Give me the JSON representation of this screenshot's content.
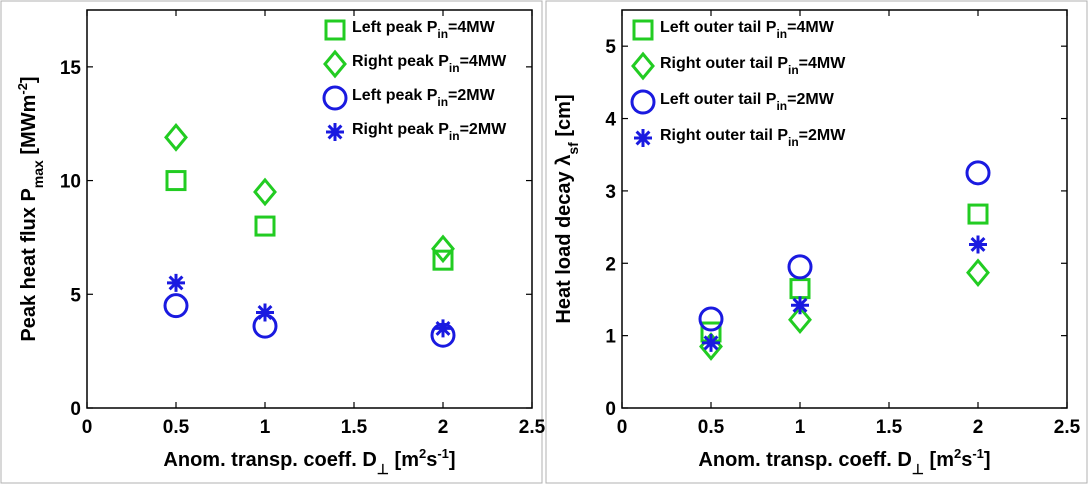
{
  "colors": {
    "green": "#22cc22",
    "blue": "#1a1ae0",
    "axis": "#000000"
  },
  "chart_data": [
    {
      "type": "scatter",
      "title": "",
      "xlabel": "Anom. transp. coeff. D",
      "xlabel_sub": "⊥",
      "xlabel_unit": "[m2s-1]",
      "ylabel": "Peak heat flux P",
      "ylabel_sub": "max",
      "ylabel_unit": "[MWm-2]",
      "xlim": [
        0,
        2.5
      ],
      "ylim": [
        0,
        17.5
      ],
      "xticks": [
        "0",
        "0.5",
        "1",
        "1.5",
        "2",
        "2.5"
      ],
      "yticks": [
        "0",
        "5",
        "10",
        "15"
      ],
      "grid": false,
      "legend_position": "top-right",
      "series": [
        {
          "name": "Left peak P",
          "name_sub": "in",
          "name_suffix": "=4MW",
          "marker": "square",
          "color": "#22cc22",
          "x": [
            0.5,
            1,
            2
          ],
          "y": [
            10.0,
            8.0,
            6.5
          ]
        },
        {
          "name": "Right peak P",
          "name_sub": "in",
          "name_suffix": "=4MW",
          "marker": "diamond",
          "color": "#22cc22",
          "x": [
            0.5,
            1,
            2
          ],
          "y": [
            11.9,
            9.5,
            7.0
          ]
        },
        {
          "name": "Left peak P",
          "name_sub": "in",
          "name_suffix": "=2MW",
          "marker": "circle",
          "color": "#1a1ae0",
          "x": [
            0.5,
            1,
            2
          ],
          "y": [
            4.5,
            3.6,
            3.2
          ]
        },
        {
          "name": "Right peak P",
          "name_sub": "in",
          "name_suffix": "=2MW",
          "marker": "star",
          "color": "#1a1ae0",
          "x": [
            0.5,
            1,
            2
          ],
          "y": [
            5.5,
            4.2,
            3.5
          ]
        }
      ]
    },
    {
      "type": "scatter",
      "title": "",
      "xlabel": "Anom. transp. coeff. D",
      "xlabel_sub": "⊥",
      "xlabel_unit": "[m2s-1]",
      "ylabel": "Heat load decay λ",
      "ylabel_sub": "sf",
      "ylabel_unit": "[cm]",
      "xlim": [
        0,
        2.5
      ],
      "ylim": [
        0,
        5.5
      ],
      "xticks": [
        "0",
        "0.5",
        "1",
        "1.5",
        "2",
        "2.5"
      ],
      "yticks": [
        "0",
        "1",
        "2",
        "3",
        "4",
        "5"
      ],
      "grid": false,
      "legend_position": "top-left",
      "series": [
        {
          "name": "Left outer tail P",
          "name_sub": "in",
          "name_suffix": "=4MW",
          "marker": "square",
          "color": "#22cc22",
          "x": [
            0.5,
            1,
            2
          ],
          "y": [
            1.05,
            1.65,
            2.68
          ]
        },
        {
          "name": "Right outer tail P",
          "name_sub": "in",
          "name_suffix": "=4MW",
          "marker": "diamond",
          "color": "#22cc22",
          "x": [
            0.5,
            1,
            2
          ],
          "y": [
            0.85,
            1.22,
            1.87
          ]
        },
        {
          "name": "Left outer tail P",
          "name_sub": "in",
          "name_suffix": "=2MW",
          "marker": "circle",
          "color": "#1a1ae0",
          "x": [
            0.5,
            1,
            2
          ],
          "y": [
            1.23,
            1.95,
            3.25
          ]
        },
        {
          "name": "Right outer tail P",
          "name_sub": "in",
          "name_suffix": "=2MW",
          "marker": "star",
          "color": "#1a1ae0",
          "x": [
            0.5,
            1,
            2
          ],
          "y": [
            0.9,
            1.42,
            2.26
          ]
        }
      ]
    }
  ]
}
